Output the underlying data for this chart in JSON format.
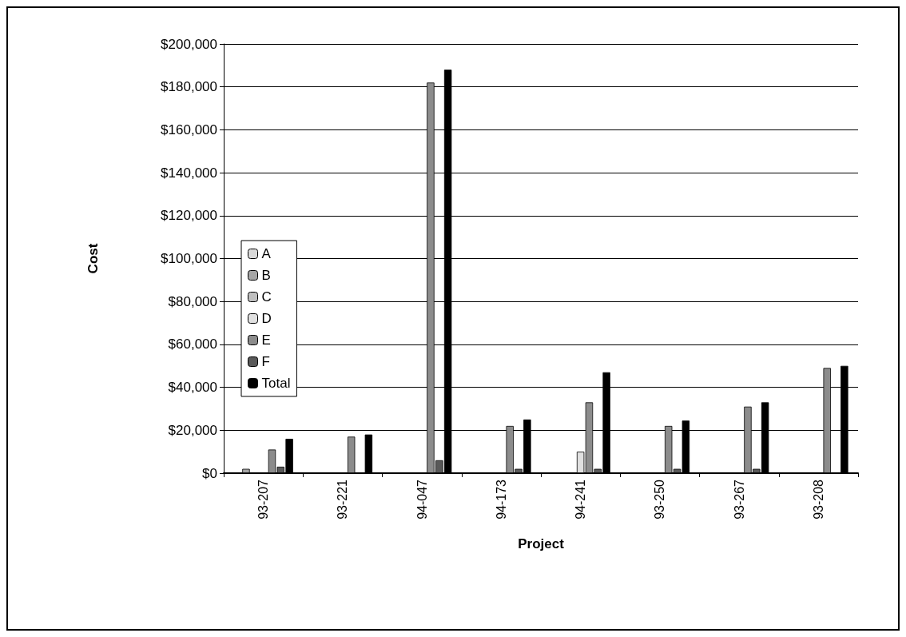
{
  "chart_data": {
    "type": "bar",
    "xlabel": "Project",
    "ylabel": "Cost",
    "categories": [
      "93-207",
      "93-221",
      "94-047",
      "94-173",
      "94-241",
      "93-250",
      "93-267",
      "93-208"
    ],
    "series": [
      {
        "name": "A",
        "color": "#d9d9d9",
        "values": [
          0,
          0,
          0,
          0,
          0,
          0,
          0,
          0
        ]
      },
      {
        "name": "B",
        "color": "#a6a6a6",
        "values": [
          2000,
          0,
          0,
          0,
          0,
          0,
          0,
          0
        ]
      },
      {
        "name": "C",
        "color": "#bfbfbf",
        "values": [
          0,
          0,
          0,
          0,
          0,
          0,
          0,
          0
        ]
      },
      {
        "name": "D",
        "color": "#e0e0e0",
        "values": [
          0,
          0,
          0,
          0,
          10000,
          0,
          0,
          0
        ]
      },
      {
        "name": "E",
        "color": "#8c8c8c",
        "values": [
          11000,
          17000,
          182000,
          22000,
          33000,
          22000,
          31000,
          49000
        ]
      },
      {
        "name": "F",
        "color": "#595959",
        "values": [
          3000,
          0,
          6000,
          2000,
          2000,
          2000,
          2000,
          0
        ]
      },
      {
        "name": "Total",
        "color": "#000000",
        "values": [
          16000,
          18000,
          188000,
          25000,
          47000,
          24500,
          33000,
          50000
        ]
      }
    ],
    "ylim": [
      0,
      200000
    ],
    "yticks": [
      {
        "value": 0,
        "label": "$0"
      },
      {
        "value": 20000,
        "label": "$20,000"
      },
      {
        "value": 40000,
        "label": "$40,000"
      },
      {
        "value": 60000,
        "label": "$60,000"
      },
      {
        "value": 80000,
        "label": "$80,000"
      },
      {
        "value": 100000,
        "label": "$100,000"
      },
      {
        "value": 120000,
        "label": "$120,000"
      },
      {
        "value": 140000,
        "label": "$140,000"
      },
      {
        "value": 160000,
        "label": "$160,000"
      },
      {
        "value": 180000,
        "label": "$180,000"
      },
      {
        "value": 200000,
        "label": "$200,000"
      }
    ],
    "grid": "y",
    "legend": "left"
  }
}
